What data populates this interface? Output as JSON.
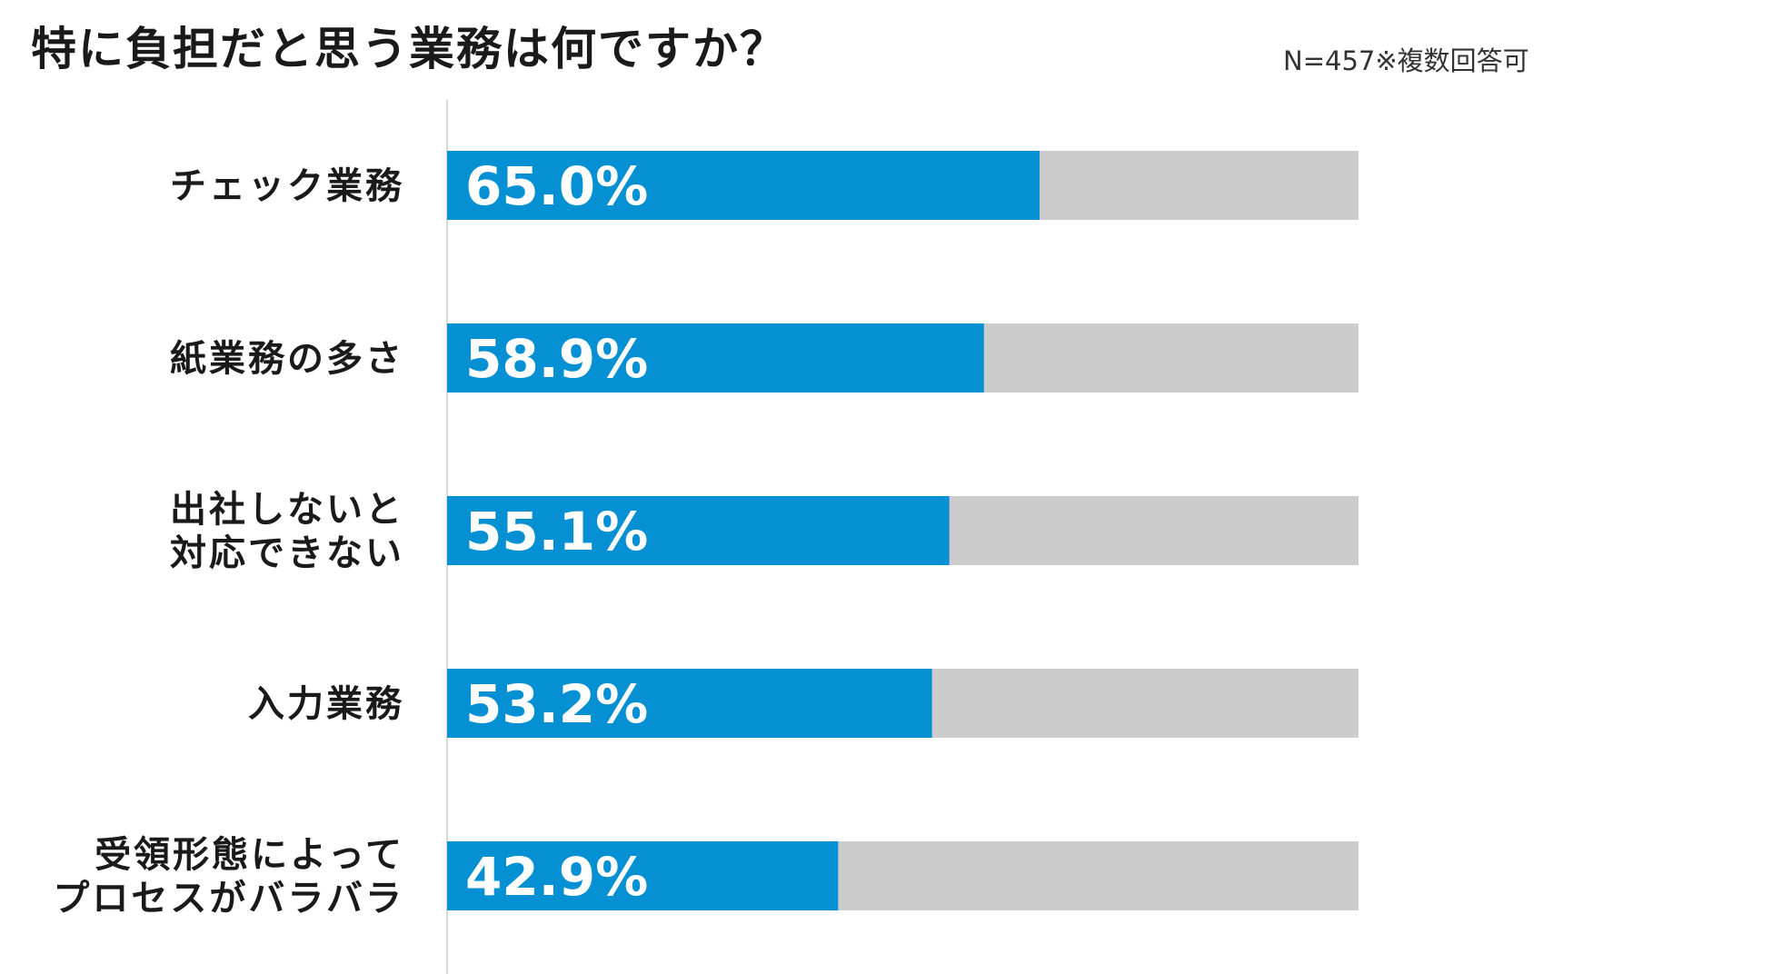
{
  "title": "特に負担だと思う業務は何ですか？",
  "note": "N=457※複数回答可",
  "colors": {
    "bar": "#0590d4",
    "track": "#cccccc",
    "axis": "#d9d9d9",
    "value_text": "#ffffff"
  },
  "chart_data": {
    "type": "bar",
    "orientation": "horizontal",
    "categories": [
      [
        "チェック業務"
      ],
      [
        "紙業務の多さ"
      ],
      [
        "出社しないと",
        "対応できない"
      ],
      [
        "入力業務"
      ],
      [
        "受領形態によって",
        "プロセスがバラバラ"
      ]
    ],
    "values": [
      65.0,
      58.9,
      55.1,
      53.2,
      42.9
    ],
    "value_labels": [
      "65.0%",
      "58.9%",
      "55.1%",
      "53.2%",
      "42.9%"
    ],
    "xlim": [
      0,
      100
    ],
    "grid": false,
    "legend": "none"
  }
}
